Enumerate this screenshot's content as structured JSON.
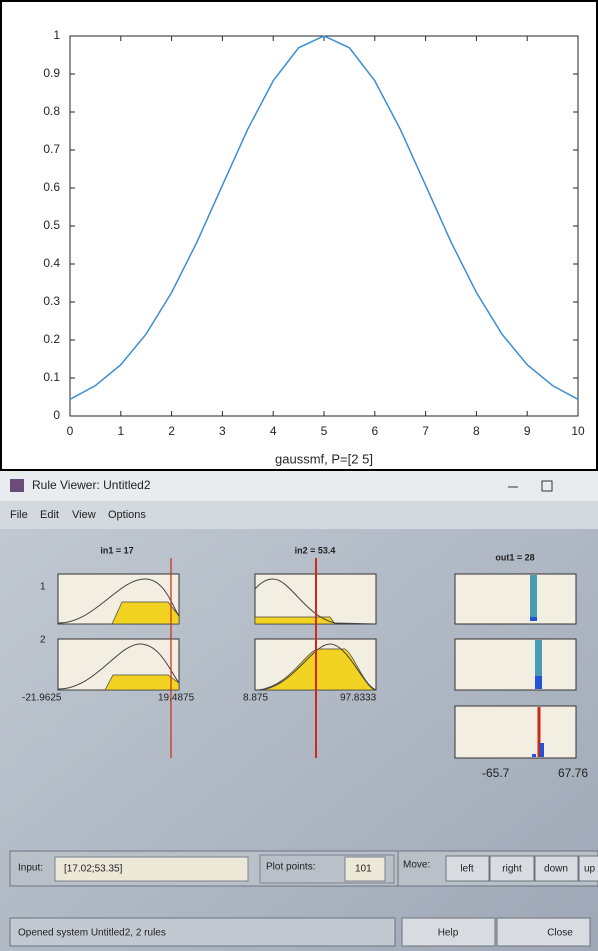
{
  "chart_data": {
    "type": "line",
    "xlabel": "gaussmf, P=[2 5]",
    "x": [
      0,
      0.5,
      1,
      1.5,
      2,
      2.5,
      3,
      3.5,
      4,
      4.5,
      5,
      5.5,
      6,
      6.5,
      7,
      7.5,
      8,
      8.5,
      9,
      9.5,
      10
    ],
    "series": [
      {
        "color": "#3d8fd1",
        "values": [
          0.044,
          0.08,
          0.135,
          0.216,
          0.325,
          0.458,
          0.607,
          0.755,
          0.882,
          0.969,
          1,
          0.969,
          0.882,
          0.755,
          0.607,
          0.458,
          0.325,
          0.216,
          0.135,
          0.08,
          0.044
        ]
      }
    ],
    "xlim": [
      0,
      10
    ],
    "ylim": [
      0,
      1
    ],
    "xticks": [
      0,
      1,
      2,
      3,
      4,
      5,
      6,
      7,
      8,
      9,
      10
    ],
    "yticks": [
      0,
      0.1,
      0.2,
      0.3,
      0.4,
      0.5,
      0.6,
      0.7,
      0.8,
      0.9,
      1
    ]
  },
  "rule_viewer": {
    "title": "Rule Viewer: Untitled2",
    "menu": [
      "File",
      "Edit",
      "View",
      "Options"
    ],
    "headers": [
      "in1 = 17",
      "in2 = 53.4",
      "out1 = 28"
    ],
    "rules": [
      "1",
      "2"
    ],
    "ranges": [
      "-21.9625",
      "19.4875",
      "8.875",
      "97.8333",
      "-65.7",
      "67.76"
    ],
    "input_label": "Input:",
    "input_value": "[17.02;53.35]",
    "plot_points_label": "Plot points:",
    "plot_points_value": "101",
    "move_label": "Move:",
    "buttons": [
      "left",
      "right",
      "down",
      "up",
      "Help",
      "Close"
    ],
    "status": "Opened system Untitled2, 2 rules"
  }
}
